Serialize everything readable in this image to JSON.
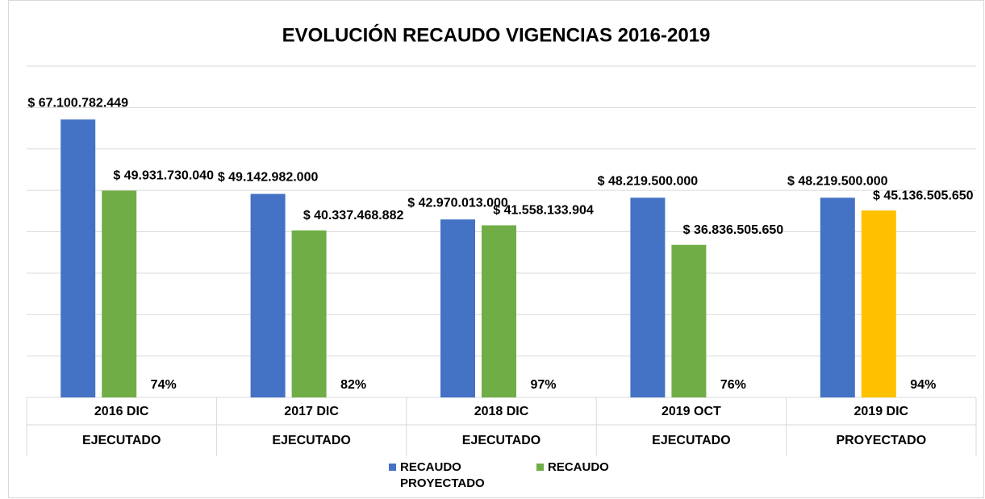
{
  "chart_data": {
    "type": "bar",
    "title": "EVOLUCIÓN RECAUDO VIGENCIAS 2016-2019",
    "categories": [
      "2016 DIC",
      "2017 DIC",
      "2018 DIC",
      "2019 OCT",
      "2019 DIC"
    ],
    "category_groups": [
      "EJECUTADO",
      "EJECUTADO",
      "EJECUTADO",
      "EJECUTADO",
      "PROYECTADO"
    ],
    "series": [
      {
        "name": "RECAUDO PROYECTADO",
        "color": "#4472c4",
        "values": [
          67100782449,
          49142982000,
          42970013000,
          48219500000,
          48219500000
        ],
        "value_labels": [
          "$ 67.100.782.449",
          "$ 49.142.982.000",
          "$ 42.970.013.000",
          "$ 48.219.500.000",
          "$ 48.219.500.000"
        ]
      },
      {
        "name": "RECAUDO",
        "color": "#70ad47",
        "colors": [
          "#70ad47",
          "#70ad47",
          "#70ad47",
          "#70ad47",
          "#ffc000"
        ],
        "values": [
          49931730040,
          40337468882,
          41558133904,
          36836505650,
          45136505650
        ],
        "value_labels": [
          "$ 49.931.730.040",
          "$ 40.337.468.882",
          "$ 41.558.133.904",
          "$ 36.836.505.650",
          "$ 45.136.505.650"
        ]
      }
    ],
    "annotations": [
      "74%",
      "82%",
      "97%",
      "76%",
      "94%"
    ],
    "ylim": [
      0,
      80000000000
    ],
    "yticks": [
      0,
      10000000000,
      20000000000,
      30000000000,
      40000000000,
      50000000000,
      60000000000,
      70000000000,
      80000000000
    ],
    "grid": true
  }
}
